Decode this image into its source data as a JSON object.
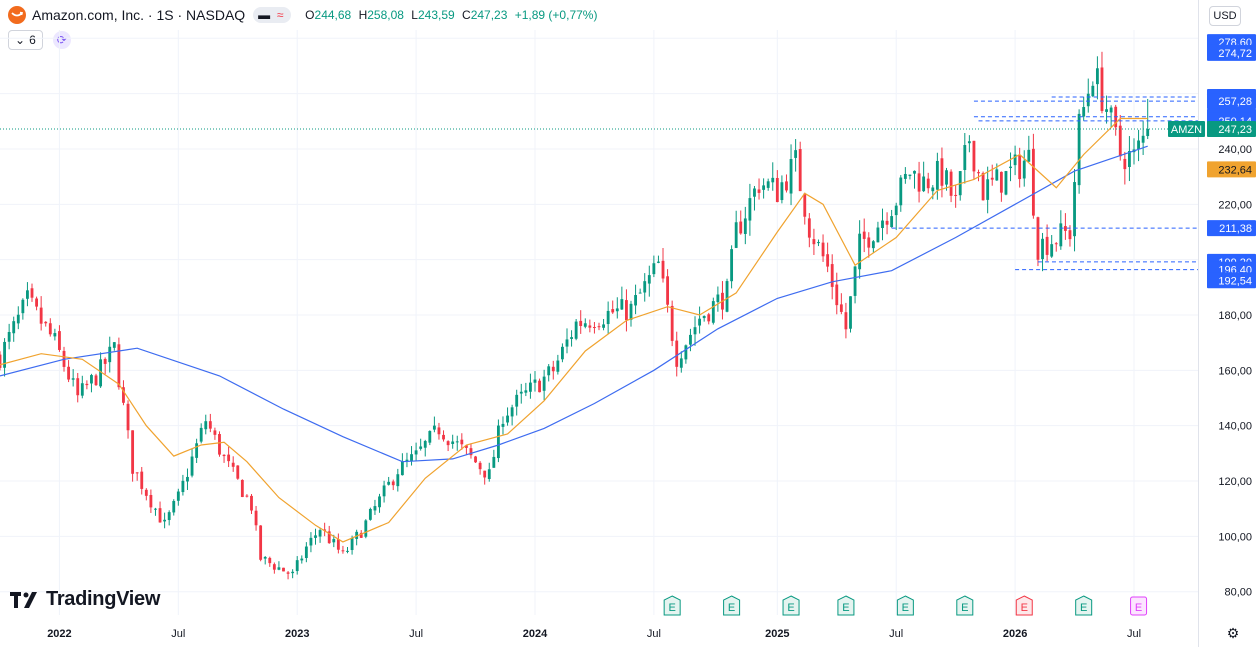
{
  "header": {
    "title": "Amazon.com, Inc. · 1S · NASDAQ",
    "o_label": "O",
    "o": "244,68",
    "h_label": "H",
    "h": "258,08",
    "l_label": "L",
    "l": "243,59",
    "c_label": "C",
    "c": "247,23",
    "change": "+1,89 (+0,77%)",
    "pill_icons": [
      "minus-icon",
      "approx-icon"
    ],
    "pill_glyphs": [
      "▬",
      "≈"
    ]
  },
  "subbar": {
    "chevron": "⌄",
    "indicator_count": "6"
  },
  "currency": "USD",
  "branding": "TradingView",
  "colors": {
    "up": "#089981",
    "down": "#f23645",
    "ma50": "#f0a32f",
    "ma200": "#3e6cf0",
    "level_line": "#2962ff",
    "earnings_green": "#089981",
    "earnings_red": "#f23645",
    "earnings_purple": "#e040fb"
  },
  "chart_data": {
    "type": "candlestick",
    "ylim": [
      77,
      283
    ],
    "xlim": [
      "2021-10-04",
      "2026-10-12"
    ],
    "y_ticks": [
      "280,00",
      "260,00",
      "240,00",
      "220,00",
      "200,00",
      "180,00",
      "160,00",
      "140,00",
      "120,00",
      "100,00",
      "80,00"
    ],
    "x_ticks": [
      {
        "label": "2022",
        "date": "2022-01-03",
        "bold": true
      },
      {
        "label": "Jul",
        "date": "2022-07-04",
        "bold": false
      },
      {
        "label": "2023",
        "date": "2023-01-02",
        "bold": true
      },
      {
        "label": "Jul",
        "date": "2023-07-03",
        "bold": false
      },
      {
        "label": "2024",
        "date": "2024-01-01",
        "bold": true
      },
      {
        "label": "Jul",
        "date": "2024-07-01",
        "bold": false
      },
      {
        "label": "2025",
        "date": "2025-01-06",
        "bold": true
      },
      {
        "label": "Jul",
        "date": "2025-07-07",
        "bold": false
      },
      {
        "label": "2026",
        "date": "2026-01-05",
        "bold": true
      },
      {
        "label": "Jul",
        "date": "2026-07-06",
        "bold": false
      }
    ],
    "price_scale_labels": [
      {
        "text": "278,60",
        "value": 278.6,
        "style": "blue"
      },
      {
        "text": "274,72",
        "value": 274.72,
        "style": "blue"
      },
      {
        "text": "258,80",
        "value": 258.8,
        "style": "blue"
      },
      {
        "text": "257,28",
        "value": 257.28,
        "style": "blue"
      },
      {
        "text": "251,67",
        "value": 251.67,
        "style": "blue"
      },
      {
        "text": "250,14",
        "value": 250.14,
        "style": "blue"
      },
      {
        "text": "247,23",
        "value": 247.23,
        "style": "green",
        "tag": "AMZN"
      },
      {
        "text": "232,64",
        "value": 232.64,
        "style": "orange"
      },
      {
        "text": "211,38",
        "value": 211.38,
        "style": "blue"
      },
      {
        "text": "199,20",
        "value": 199.2,
        "style": "blue"
      },
      {
        "text": "196,40",
        "value": 196.4,
        "style": "blue"
      },
      {
        "text": "192,54",
        "value": 192.54,
        "style": "blue"
      }
    ],
    "last_price": 247.23,
    "level_lines": [
      {
        "value": 258.8,
        "from": "2026-03-02"
      },
      {
        "value": 257.28,
        "from": "2025-11-03"
      },
      {
        "value": 251.67,
        "from": "2025-11-03"
      },
      {
        "value": 250.14,
        "from": "2025-11-10"
      },
      {
        "value": 211.38,
        "from": "2025-06-30"
      },
      {
        "value": 199.2,
        "from": "2026-02-09"
      },
      {
        "value": 196.4,
        "from": "2026-01-05"
      }
    ],
    "earnings_markers": [
      {
        "date": "2024-07-29",
        "type": "green",
        "label": "E"
      },
      {
        "date": "2024-10-28",
        "type": "green",
        "label": "E"
      },
      {
        "date": "2025-01-27",
        "type": "green",
        "label": "E"
      },
      {
        "date": "2025-04-21",
        "type": "green",
        "label": "E"
      },
      {
        "date": "2025-07-21",
        "type": "green",
        "label": "E"
      },
      {
        "date": "2025-10-20",
        "type": "green",
        "label": "E"
      },
      {
        "date": "2026-01-19",
        "type": "red",
        "label": "E"
      },
      {
        "date": "2026-04-20",
        "type": "green",
        "label": "E"
      },
      {
        "date": "2026-07-13",
        "type": "future",
        "label": "E"
      }
    ],
    "ma50": [
      [
        "2021-10-04",
        162
      ],
      [
        "2021-12-06",
        166
      ],
      [
        "2022-02-07",
        164
      ],
      [
        "2022-04-04",
        155
      ],
      [
        "2022-05-16",
        140
      ],
      [
        "2022-06-27",
        129
      ],
      [
        "2022-08-08",
        133
      ],
      [
        "2022-09-12",
        134
      ],
      [
        "2022-10-17",
        127
      ],
      [
        "2022-12-05",
        114
      ],
      [
        "2023-01-30",
        104
      ],
      [
        "2023-03-13",
        98
      ],
      [
        "2023-05-22",
        105
      ],
      [
        "2023-07-17",
        121
      ],
      [
        "2023-09-18",
        133
      ],
      [
        "2023-11-20",
        137
      ],
      [
        "2024-01-15",
        149
      ],
      [
        "2024-03-18",
        167
      ],
      [
        "2024-05-20",
        178
      ],
      [
        "2024-07-22",
        183
      ],
      [
        "2024-09-09",
        180
      ],
      [
        "2024-11-04",
        188
      ],
      [
        "2025-01-06",
        210
      ],
      [
        "2025-02-17",
        224
      ],
      [
        "2025-03-17",
        220
      ],
      [
        "2025-05-05",
        198
      ],
      [
        "2025-07-07",
        208
      ],
      [
        "2025-09-08",
        225
      ],
      [
        "2025-11-03",
        229
      ],
      [
        "2026-01-12",
        238
      ],
      [
        "2026-03-09",
        226
      ],
      [
        "2026-04-20",
        238
      ],
      [
        "2026-06-15",
        251
      ],
      [
        "2026-07-27",
        251
      ]
    ],
    "ma200": [
      [
        "2021-10-04",
        158
      ],
      [
        "2022-01-10",
        164
      ],
      [
        "2022-05-02",
        168
      ],
      [
        "2022-09-05",
        158
      ],
      [
        "2022-12-12",
        146
      ],
      [
        "2023-03-13",
        136
      ],
      [
        "2023-06-12",
        127
      ],
      [
        "2023-08-28",
        128
      ],
      [
        "2023-11-06",
        133
      ],
      [
        "2024-01-15",
        139
      ],
      [
        "2024-04-01",
        148
      ],
      [
        "2024-07-01",
        160
      ],
      [
        "2024-10-07",
        175
      ],
      [
        "2025-01-06",
        186
      ],
      [
        "2025-03-31",
        192
      ],
      [
        "2025-06-30",
        196
      ],
      [
        "2025-10-06",
        208
      ],
      [
        "2026-01-05",
        220
      ],
      [
        "2026-04-06",
        232
      ],
      [
        "2026-07-27",
        241
      ]
    ],
    "anchors": [
      [
        "2021-10-04",
        165
      ],
      [
        "2021-11-15",
        185
      ],
      [
        "2021-12-27",
        170
      ],
      [
        "2022-01-31",
        150
      ],
      [
        "2022-03-07",
        160
      ],
      [
        "2022-03-28",
        168
      ],
      [
        "2022-04-25",
        125
      ],
      [
        "2022-06-13",
        104
      ],
      [
        "2022-07-04",
        114
      ],
      [
        "2022-08-15",
        142
      ],
      [
        "2022-09-12",
        128
      ],
      [
        "2022-10-24",
        111
      ],
      [
        "2022-11-07",
        92
      ],
      [
        "2022-12-26",
        86
      ],
      [
        "2023-01-16",
        96
      ],
      [
        "2023-02-06",
        103
      ],
      [
        "2023-03-13",
        93
      ],
      [
        "2023-04-10",
        102
      ],
      [
        "2023-06-05",
        124
      ],
      [
        "2023-07-03",
        129
      ],
      [
        "2023-08-07",
        139
      ],
      [
        "2023-09-18",
        130
      ],
      [
        "2023-10-23",
        122
      ],
      [
        "2023-11-13",
        144
      ],
      [
        "2023-12-26",
        153
      ],
      [
        "2024-01-29",
        160
      ],
      [
        "2024-03-04",
        177
      ],
      [
        "2024-04-29",
        181
      ],
      [
        "2024-05-27",
        182
      ],
      [
        "2024-07-08",
        198
      ],
      [
        "2024-08-05",
        165
      ],
      [
        "2024-09-09",
        179
      ],
      [
        "2024-10-21",
        188
      ],
      [
        "2024-11-04",
        210
      ],
      [
        "2024-12-09",
        228
      ],
      [
        "2025-01-06",
        225
      ],
      [
        "2025-02-03",
        235
      ],
      [
        "2025-02-24",
        212
      ],
      [
        "2025-03-24",
        197
      ],
      [
        "2025-04-21",
        175
      ],
      [
        "2025-05-12",
        205
      ],
      [
        "2025-06-09",
        213
      ],
      [
        "2025-07-07",
        222
      ],
      [
        "2025-07-28",
        232
      ],
      [
        "2025-08-18",
        228
      ],
      [
        "2025-09-15",
        231
      ],
      [
        "2025-10-06",
        220
      ],
      [
        "2025-10-27",
        244
      ],
      [
        "2025-11-17",
        225
      ],
      [
        "2025-12-22",
        230
      ],
      [
        "2026-01-26",
        237
      ],
      [
        "2026-02-09",
        205
      ],
      [
        "2026-03-09",
        208
      ],
      [
        "2026-03-30",
        210
      ],
      [
        "2026-04-13",
        248
      ],
      [
        "2026-05-04",
        268
      ],
      [
        "2026-05-25",
        255
      ],
      [
        "2026-06-15",
        238
      ],
      [
        "2026-07-06",
        237
      ],
      [
        "2026-07-27",
        247
      ]
    ]
  }
}
